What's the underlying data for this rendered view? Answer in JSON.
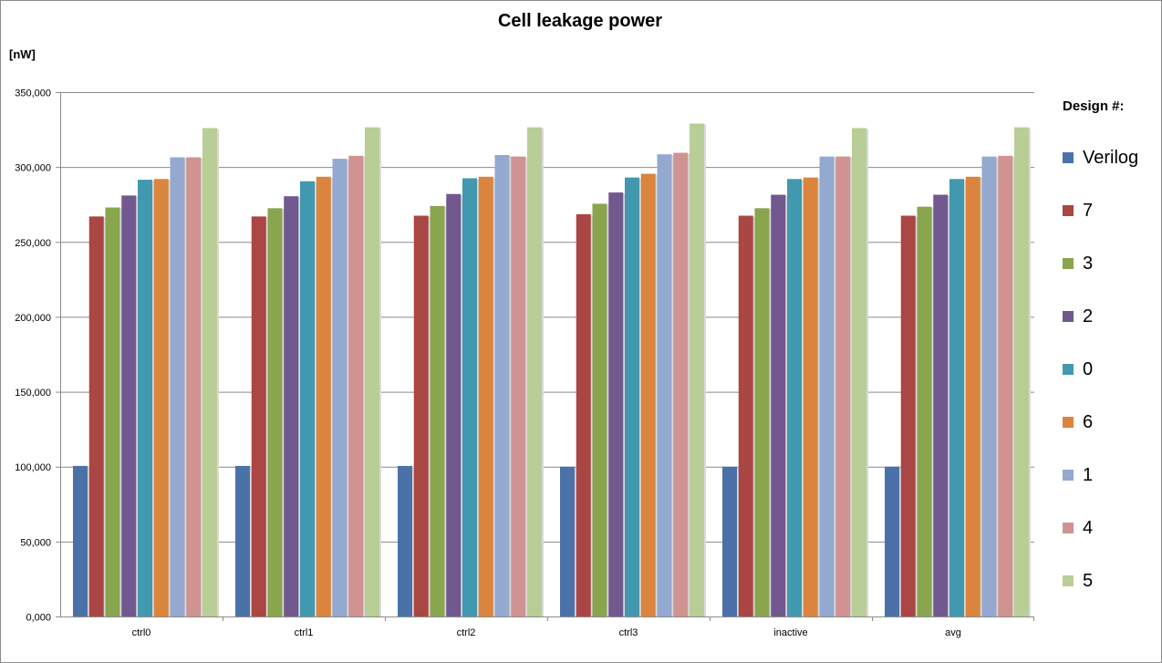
{
  "chart_data": {
    "type": "bar",
    "title": "Cell leakage power",
    "ylabel": "[nW]",
    "xlabel": "",
    "legend_title": "Design #:",
    "legend_position": "right",
    "grid": true,
    "ylim": [
      0,
      350000
    ],
    "yticks": [
      0,
      50000,
      100000,
      150000,
      200000,
      250000,
      300000,
      350000
    ],
    "ytick_labels": [
      "0,000",
      "50,000",
      "100,000",
      "150,000",
      "200,000",
      "250,000",
      "300,000",
      "350,000"
    ],
    "categories": [
      "ctrl0",
      "ctrl1",
      "ctrl2",
      "ctrl3",
      "inactive",
      "avg"
    ],
    "series": [
      {
        "name": "Verilog",
        "color": "#4a72a8",
        "values": [
          100500,
          100500,
          100500,
          100000,
          100000,
          100000
        ]
      },
      {
        "name": "7",
        "color": "#aa4644",
        "values": [
          267000,
          267000,
          267500,
          268500,
          267500,
          267500
        ]
      },
      {
        "name": "3",
        "color": "#89a54e",
        "values": [
          273000,
          272500,
          274000,
          275500,
          272500,
          273500
        ]
      },
      {
        "name": "2",
        "color": "#71588f",
        "values": [
          281000,
          280500,
          282000,
          283000,
          281500,
          281500
        ]
      },
      {
        "name": "0",
        "color": "#4298af",
        "values": [
          291500,
          290500,
          292500,
          293000,
          292000,
          292000
        ]
      },
      {
        "name": "6",
        "color": "#db843d",
        "values": [
          292000,
          293500,
          293500,
          295500,
          293000,
          293500
        ]
      },
      {
        "name": "1",
        "color": "#93a9cf",
        "values": [
          306500,
          305500,
          308000,
          308500,
          307000,
          307000
        ]
      },
      {
        "name": "4",
        "color": "#d19392",
        "values": [
          306500,
          307500,
          307000,
          309500,
          307000,
          307500
        ]
      },
      {
        "name": "5",
        "color": "#b9cd96",
        "values": [
          326000,
          326500,
          326500,
          329000,
          326000,
          326500
        ]
      }
    ]
  }
}
